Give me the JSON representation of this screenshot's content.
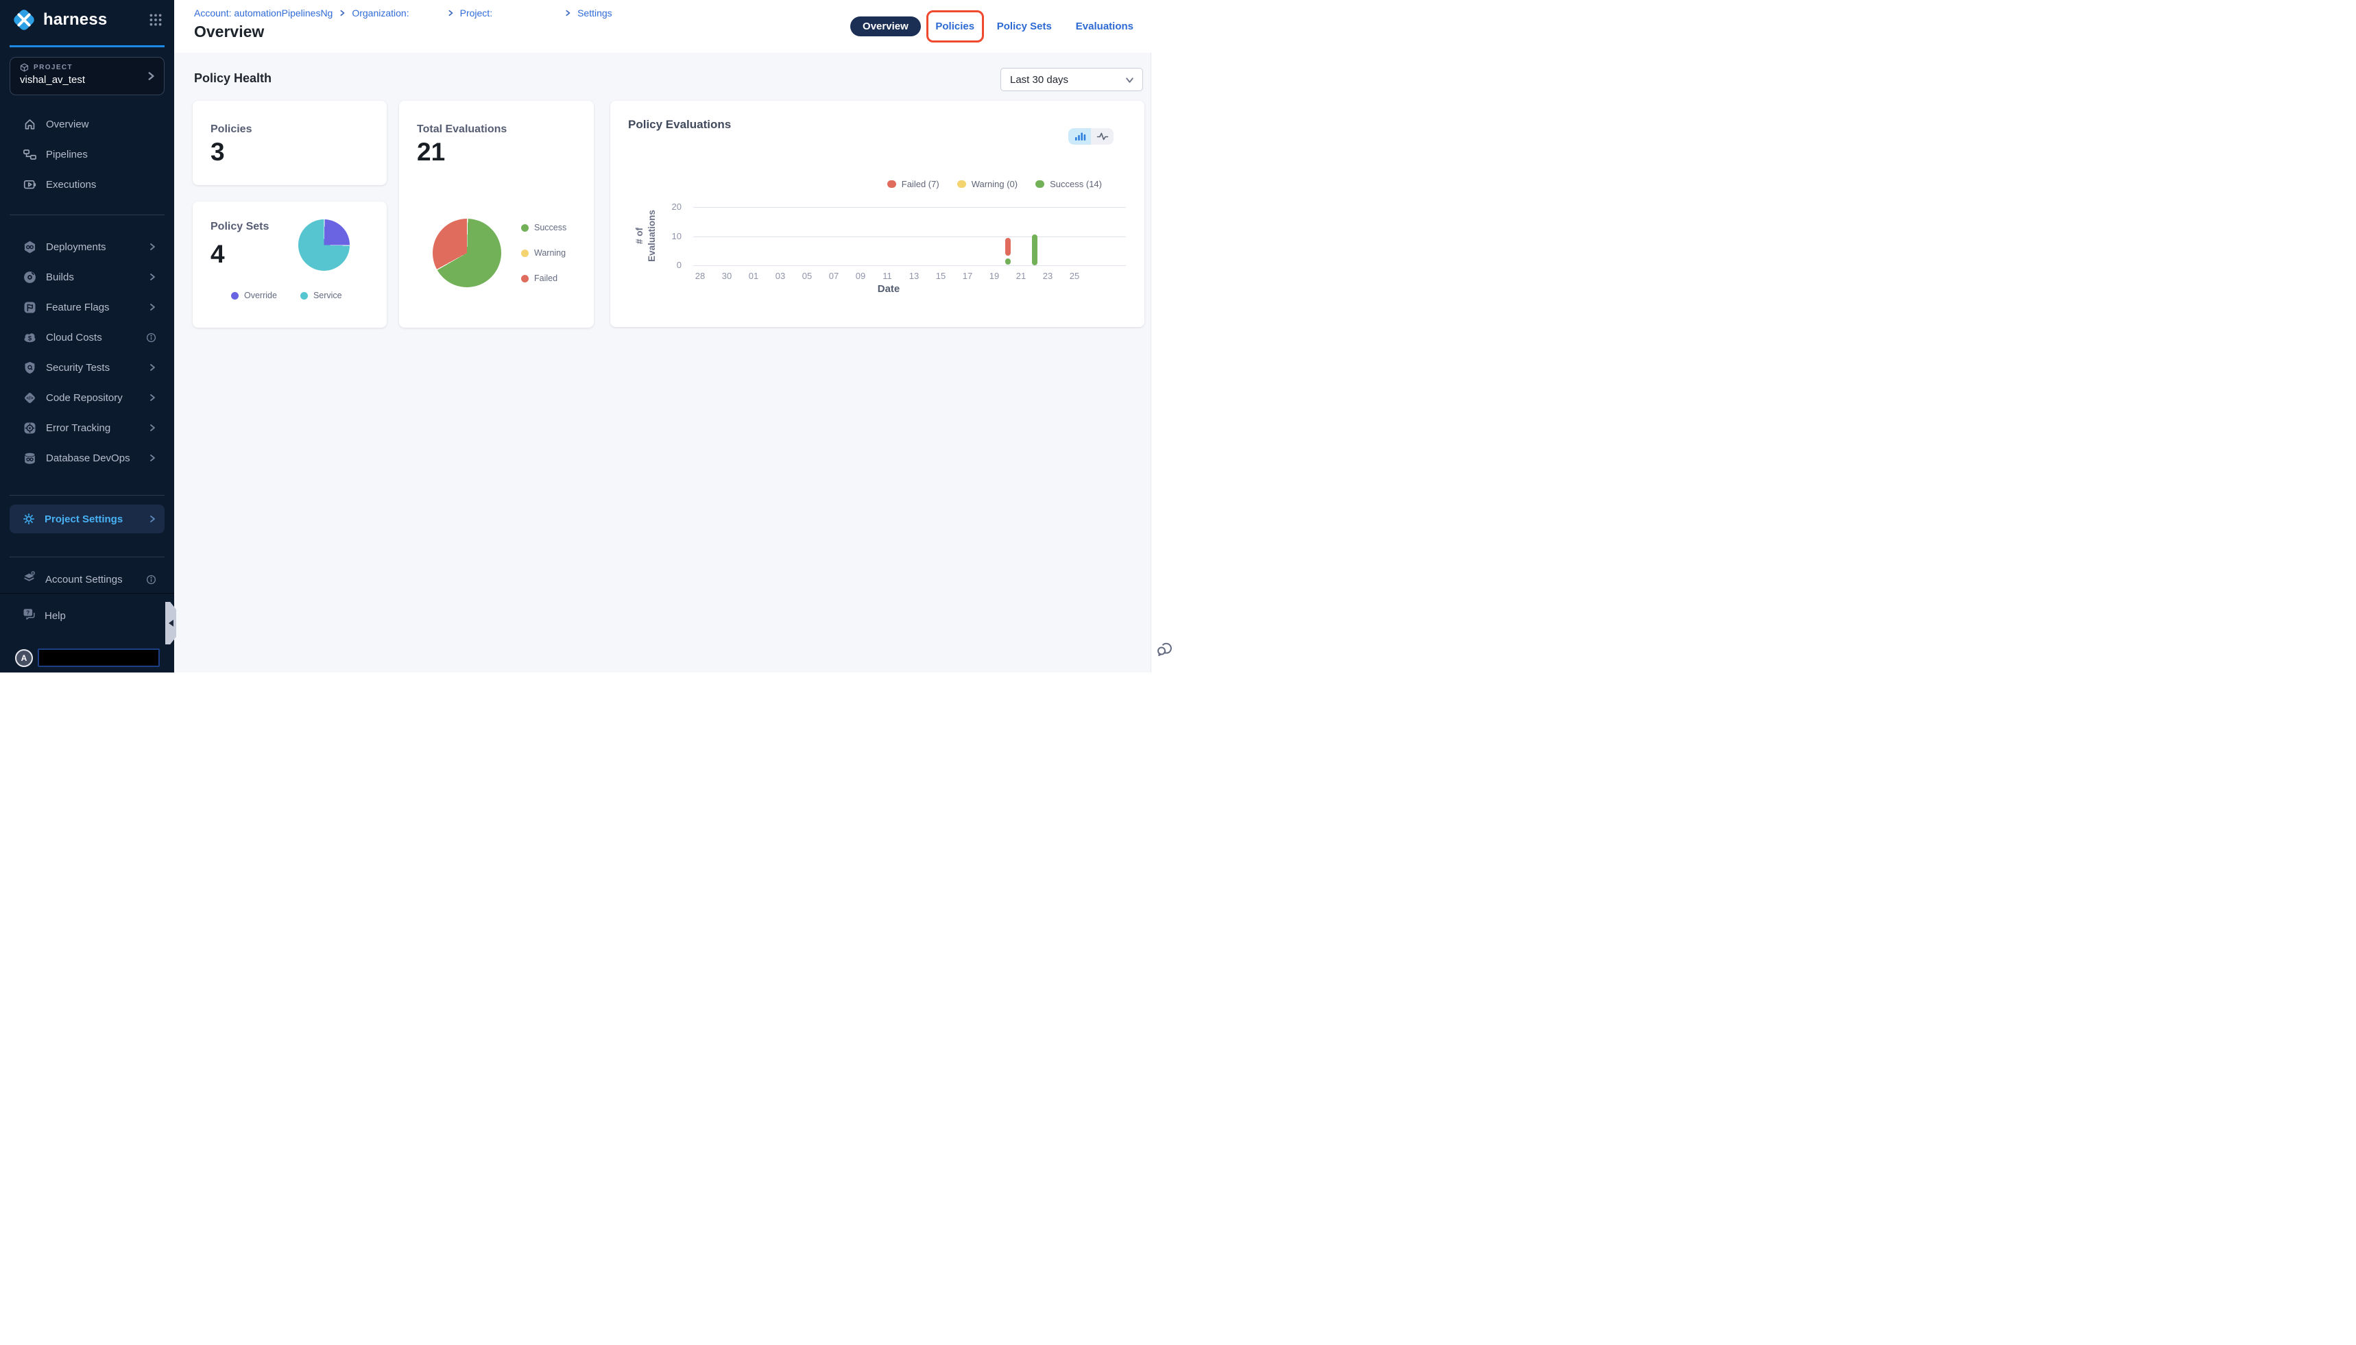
{
  "app": {
    "brand": "harness"
  },
  "sidebar": {
    "project_label": "PROJECT",
    "project_name": "vishal_av_test",
    "nav_top": [
      {
        "label": "Overview"
      },
      {
        "label": "Pipelines"
      },
      {
        "label": "Executions"
      }
    ],
    "modules": [
      {
        "label": "Deployments",
        "trailing": "chevron"
      },
      {
        "label": "Builds",
        "trailing": "chevron"
      },
      {
        "label": "Feature Flags",
        "trailing": "chevron"
      },
      {
        "label": "Cloud Costs",
        "trailing": "info"
      },
      {
        "label": "Security Tests",
        "trailing": "chevron"
      },
      {
        "label": "Code Repository",
        "trailing": "chevron"
      },
      {
        "label": "Error Tracking",
        "trailing": "chevron"
      },
      {
        "label": "Database DevOps",
        "trailing": "chevron"
      }
    ],
    "project_settings_label": "Project Settings",
    "account_settings_label": "Account Settings",
    "help_label": "Help",
    "avatar_initial": "A"
  },
  "header": {
    "breadcrumb": {
      "account": "Account: automationPipelinesNg",
      "organization": "Organization:",
      "project": "Project:",
      "settings": "Settings"
    },
    "title": "Overview",
    "tabs": {
      "overview": "Overview",
      "policies": "Policies",
      "policy_sets": "Policy Sets",
      "evaluations": "Evaluations"
    },
    "annotation_color": "#ef4a30"
  },
  "main": {
    "section_title": "Policy Health",
    "date_filter": "Last 30 days",
    "cards": {
      "policies": {
        "label": "Policies",
        "value": "3"
      },
      "total_evaluations": {
        "label": "Total Evaluations",
        "value": "21"
      },
      "policy_sets": {
        "label": "Policy Sets",
        "value": "4"
      }
    }
  },
  "chart_data": [
    {
      "id": "total-evaluations-pie",
      "type": "pie",
      "title": "Total Evaluations",
      "total": 21,
      "slices": [
        {
          "label": "Success",
          "value": 14,
          "color": "#73b159"
        },
        {
          "label": "Warning",
          "value": 0,
          "color": "#ecc94f"
        },
        {
          "label": "Failed",
          "value": 7,
          "color": "#df6c5c"
        }
      ],
      "start_angle_deg": 0,
      "legend_position": "right"
    },
    {
      "id": "policy-sets-pie",
      "type": "pie",
      "title": "Policy Sets",
      "total": 4,
      "slices": [
        {
          "label": "Override",
          "value": 1,
          "color": "#6a63e2"
        },
        {
          "label": "Service",
          "value": 3,
          "color": "#56c5d0"
        }
      ],
      "start_angle_deg": 0,
      "legend_position": "bottom"
    },
    {
      "id": "policy-evaluations-bar",
      "type": "bar",
      "title": "Policy Evaluations",
      "xlabel": "Date",
      "ylabel": "# of Evaluations",
      "ylim": [
        0,
        20
      ],
      "yticks": [
        0,
        10,
        20
      ],
      "xticks": [
        "28",
        "30",
        "01",
        "03",
        "05",
        "07",
        "09",
        "11",
        "13",
        "15",
        "17",
        "19",
        "21",
        "23",
        "25"
      ],
      "x_days_total": 30,
      "grid": true,
      "legend_position": "top-right",
      "legend": [
        {
          "label": "Failed (7)",
          "color": "#df6c5c"
        },
        {
          "label": "Warning (0)",
          "color": "#f3d470"
        },
        {
          "label": "Success (14)",
          "color": "#73b159"
        }
      ],
      "totals": {
        "failed": 7,
        "warning": 0,
        "success": 14
      },
      "series": [
        {
          "name": "Success",
          "color": "#73b159",
          "points": [
            {
              "day": "20",
              "day_index": 23,
              "from": 0.3,
              "to": 2.3
            },
            {
              "day": "22",
              "day_index": 25,
              "from": 0.1,
              "to": 10.6
            }
          ]
        },
        {
          "name": "Failed",
          "color": "#df6c5c",
          "points": [
            {
              "day": "20",
              "day_index": 23,
              "from": 3.3,
              "to": 9.5
            }
          ]
        }
      ]
    }
  ],
  "colors": {
    "sidebar_bg": "#0c1a2e",
    "accent_blue": "#2e6ad3",
    "annotation_red": "#ef4a30",
    "success": "#73b159",
    "warning": "#f3d470",
    "failed": "#df6c5c",
    "override": "#6a63e2",
    "service": "#56c5d0"
  }
}
